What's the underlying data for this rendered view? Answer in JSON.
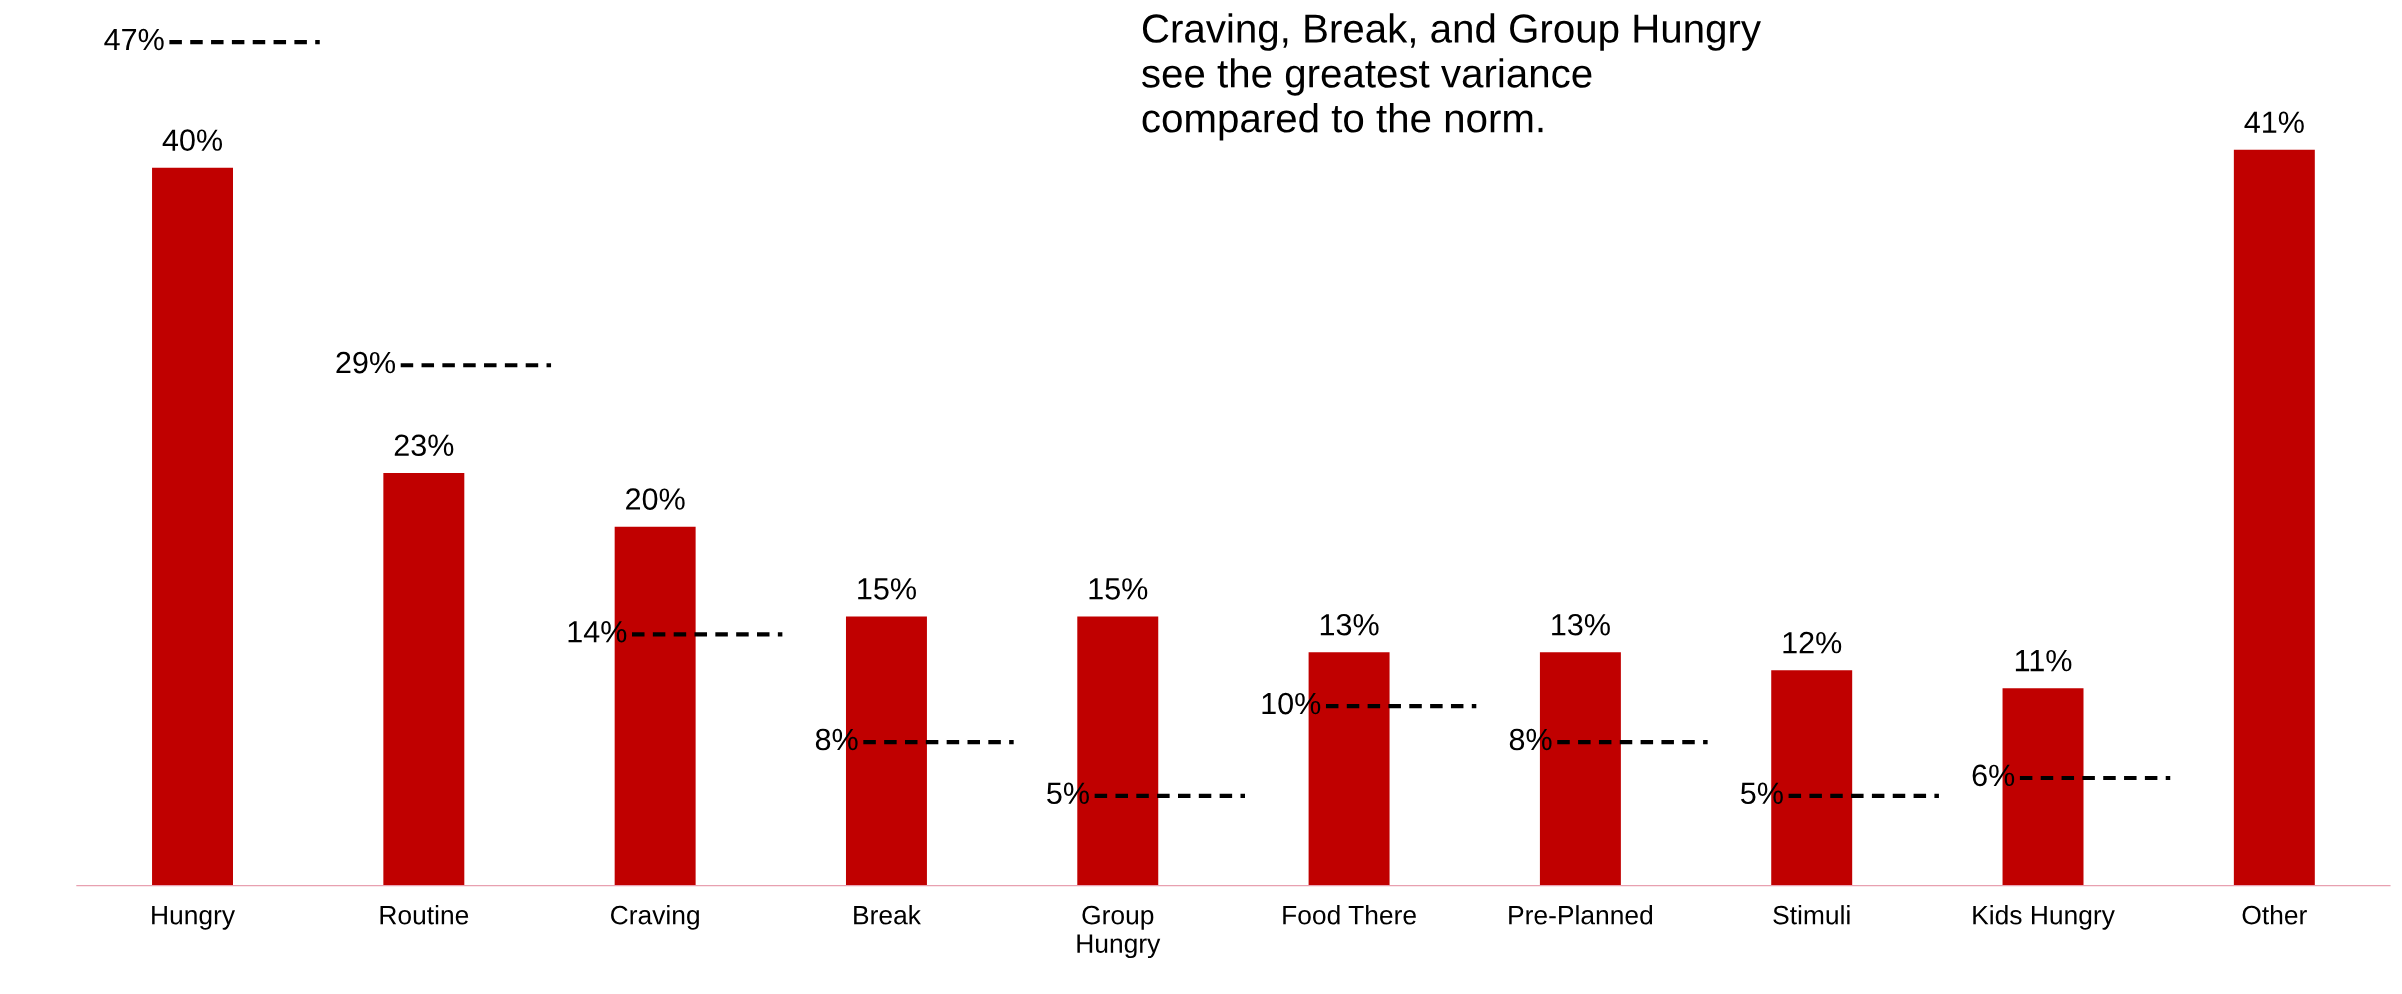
{
  "chart_data": {
    "type": "bar",
    "categories": [
      "Hungry",
      "Routine",
      "Craving",
      "Break",
      "Group\nHungry",
      "Food There",
      "Pre-Planned",
      "Stimuli",
      "Kids Hungry",
      "Other"
    ],
    "series": [
      {
        "color": "#c00000",
        "values": [
          40,
          23,
          20,
          15,
          15,
          13,
          13,
          12,
          11,
          41
        ],
        "value_labels": [
          "40%",
          "23%",
          "20%",
          "15%",
          "15%",
          "13%",
          "13%",
          "12%",
          "11%",
          "41%"
        ]
      }
    ],
    "ref_lines": [
      {
        "axis": "y",
        "value": 47,
        "label": "47%",
        "color": "#000000",
        "line_style": "dashed"
      },
      {
        "axis": "y",
        "value": 29,
        "label": "29%",
        "color": "#000000",
        "line_style": "dashed"
      },
      {
        "axis": "y",
        "value": 14,
        "label": "14%",
        "color": "#000000",
        "line_style": "dashed"
      },
      {
        "axis": "y",
        "value": 8,
        "label": "8%",
        "color": "#000000",
        "line_style": "dashed"
      },
      {
        "axis": "y",
        "value": 5,
        "label": "5%",
        "color": "#000000",
        "line_style": "dashed"
      },
      {
        "axis": "y",
        "value": 10,
        "label": "10%",
        "color": "#000000",
        "line_style": "dashed"
      },
      {
        "axis": "y",
        "value": 8,
        "label": "8%",
        "color": "#000000",
        "line_style": "dashed"
      },
      {
        "axis": "y",
        "value": 5,
        "label": "5%",
        "color": "#000000",
        "line_style": "dashed"
      },
      {
        "axis": "y",
        "value": 6,
        "label": "6%",
        "color": "#000000",
        "line_style": "dashed"
      }
    ],
    "tick_labels": "x",
    "annotations": [
      "Craving, Break, and Group Hungry\nsee the greatest variance\ncompared to the norm."
    ]
  }
}
